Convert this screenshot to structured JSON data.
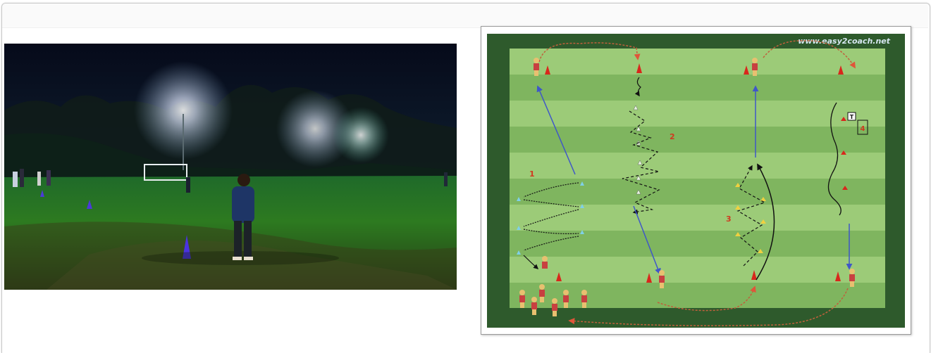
{
  "page": {
    "background": "#ffffff"
  },
  "photo": {
    "description_name": "night-football-training-photo"
  },
  "drill": {
    "watermark": "www.easy2coach.net",
    "stations": [
      "1",
      "2",
      "3",
      "4"
    ],
    "trainer_label": "T",
    "colors": {
      "pitch_dark": "#2e5a2c",
      "stripe_light": "#8cc26a",
      "stripe_dark": "#7bb35c",
      "run_arrow": "#3f57c8",
      "dribble": "#b8573a",
      "cone": "#d8271c"
    }
  }
}
